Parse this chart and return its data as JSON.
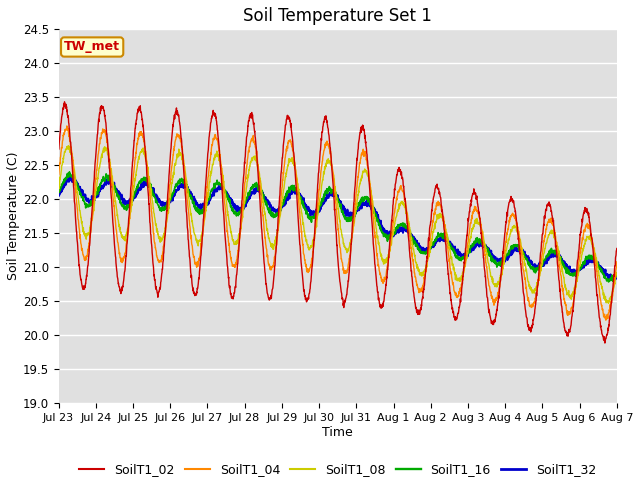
{
  "title": "Soil Temperature Set 1",
  "xlabel": "Time",
  "ylabel": "Soil Temperature (C)",
  "ylim": [
    19.0,
    24.5
  ],
  "yticks": [
    19.0,
    19.5,
    20.0,
    20.5,
    21.0,
    21.5,
    22.0,
    22.5,
    23.0,
    23.5,
    24.0,
    24.5
  ],
  "bg_color": "#e0e0e0",
  "fig_color": "#ffffff",
  "annotation_text": "TW_met",
  "annotation_bg": "#ffffcc",
  "annotation_border": "#cc8800",
  "legend_entries": [
    "SoilT1_02",
    "SoilT1_04",
    "SoilT1_08",
    "SoilT1_16",
    "SoilT1_32"
  ],
  "line_colors": [
    "#cc0000",
    "#ff8800",
    "#cccc00",
    "#00aa00",
    "#0000cc"
  ],
  "line_widths": [
    1.0,
    1.0,
    1.0,
    1.2,
    1.5
  ],
  "xtick_labels": [
    "Jul 23",
    "Jul 24",
    "Jul 25",
    "Jul 26",
    "Jul 27",
    "Jul 28",
    "Jul 29",
    "Jul 30",
    "Jul 31",
    "Aug 1",
    "Aug 2",
    "Aug 3",
    "Aug 4",
    "Aug 5",
    "Aug 6",
    "Aug 7"
  ],
  "num_days": 15,
  "samples_per_day": 144
}
